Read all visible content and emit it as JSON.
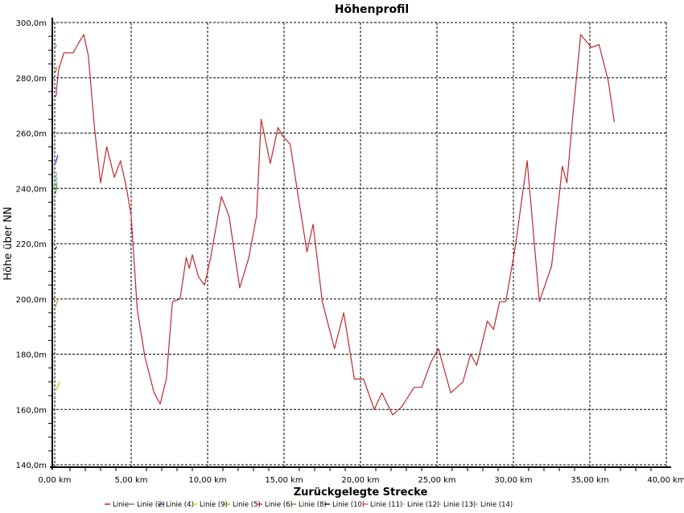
{
  "chart_data": {
    "type": "line",
    "title": "Höhenprofil",
    "xlabel": "Zurückgelegte Strecke",
    "ylabel": "Höhe über NN",
    "xlim": [
      0,
      40
    ],
    "ylim": [
      140,
      300
    ],
    "x_ticks": [
      "0,00 km",
      "5,00 km",
      "10,00 km",
      "15,00 km",
      "20,00 km",
      "25,00 km",
      "30,00 km",
      "35,00 km",
      "40,00 km"
    ],
    "y_ticks": [
      "140,0m",
      "160,0m",
      "180,0m",
      "200,0m",
      "220,0m",
      "240,0m",
      "260,0m",
      "280,0m",
      "300,0m"
    ],
    "grid": true,
    "legend": "bottom",
    "series": [
      {
        "name": "Linie",
        "color": "#c0282d",
        "x": [
          0.1,
          0.26,
          0.6,
          1.2,
          1.5,
          1.9,
          2.2,
          2.6,
          3.0,
          3.4,
          3.9,
          4.3,
          4.7,
          5.0,
          5.4,
          5.9,
          6.5,
          6.9,
          7.3,
          7.7,
          8.2,
          8.6,
          8.8,
          9.0,
          9.4,
          9.8,
          10.2,
          10.9,
          11.4,
          12.1,
          12.7,
          13.2,
          13.5,
          14.1,
          14.6,
          14.9,
          15.4,
          15.9,
          16.5,
          16.9,
          17.5,
          18.3,
          18.9,
          19.6,
          20.2,
          20.9,
          21.4,
          22.1,
          22.7,
          23.5,
          24.0,
          24.6,
          25.1,
          25.9,
          26.7,
          27.2,
          27.6,
          28.3,
          28.7,
          29.1,
          29.5,
          30.1,
          30.9,
          31.7,
          32.5,
          33.2,
          33.5,
          33.9,
          34.4,
          35.1,
          35.6,
          36.2,
          36.6
        ],
        "y": [
          275,
          283,
          289,
          289,
          292,
          295.6,
          288,
          262,
          242,
          255,
          244,
          250,
          240,
          230,
          196,
          179,
          166,
          162,
          171,
          199,
          200,
          215,
          211,
          216,
          208,
          205,
          215,
          237,
          230,
          204,
          215,
          230,
          265,
          249,
          262,
          259,
          256,
          238,
          217,
          227,
          199,
          182,
          195,
          171,
          171,
          160,
          166,
          158,
          161,
          168,
          168,
          177,
          182,
          166,
          170,
          180,
          176,
          192,
          189,
          199,
          199,
          218,
          250,
          199,
          212,
          248,
          242,
          267,
          295.6,
          291,
          292,
          279,
          264
        ]
      },
      {
        "name": "Linie (2)",
        "color": "#3aa03a",
        "x": [
          0.05,
          0.15
        ],
        "y": [
          238,
          242
        ]
      },
      {
        "name": "Linie (4)",
        "color": "#2a2aa8",
        "x": [
          0.05,
          0.2
        ],
        "y": [
          249,
          252
        ]
      },
      {
        "name": "Linie (9)",
        "color": "#e0c000",
        "x": [
          0.1,
          0.35
        ],
        "y": [
          167,
          170
        ]
      },
      {
        "name": "Linie (5)",
        "color": "#e09030",
        "x": [
          0.05,
          0.2
        ],
        "y": [
          197,
          200
        ]
      },
      {
        "name": "Linie (6)",
        "color": "#c020c0",
        "x": [
          0.05,
          0.15
        ],
        "y": [
          273,
          275
        ]
      },
      {
        "name": "Linie (8)",
        "color": "#b08020",
        "x": [
          0.05,
          0.15
        ],
        "y": [
          282,
          284
        ]
      },
      {
        "name": "Linie (10)",
        "color": "#202020",
        "x": [
          0.05,
          0.12
        ],
        "y": [
          218,
          219
        ]
      },
      {
        "name": "Linie (11)",
        "color": "#e06070",
        "x": [
          0.05,
          0.12
        ],
        "y": [
          291,
          292
        ]
      },
      {
        "name": "Linie (12)",
        "color": "#90d890",
        "x": [
          0.05,
          0.15
        ],
        "y": [
          240,
          244
        ]
      },
      {
        "name": "Linie (13)",
        "color": "#90b8d8",
        "x": [
          0.05,
          0.15
        ],
        "y": [
          243,
          246
        ]
      },
      {
        "name": "Linie (14)",
        "color": "#e080e0",
        "x": [
          0.05,
          0.12
        ],
        "y": [
          276,
          277
        ]
      }
    ]
  }
}
